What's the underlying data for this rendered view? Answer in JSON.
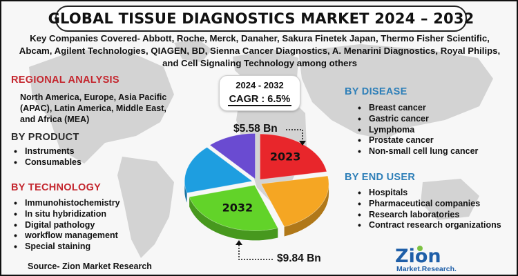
{
  "title": "GLOBAL TISSUE DIAGNOSTICS MARKET 2024 – 2032",
  "companies_text": "Key Companies Covered- Abbott, Roche, Merck, Danaher, Sakura Finetek Japan, Thermo Fisher Scientific, Abcam, Agilent Technologies, QIAGEN, BD, Sienna Cancer Diagnostics, A. Menarini Diagnostics, Royal Philips, and Cell Signaling Technology among others",
  "regional": {
    "heading": "REGIONAL ANALYSIS",
    "text": "North America, Europe, Asia Pacific (APAC), Latin America, Middle East, and Africa (MEA)"
  },
  "product": {
    "heading": "BY  PRODUCT",
    "items": [
      "Instruments",
      "Consumables"
    ]
  },
  "technology": {
    "heading": "BY TECHNOLOGY",
    "items": [
      "Immunohistochemistry",
      "In situ hybridization",
      "Digital pathology",
      "workflow management",
      "Special staining"
    ]
  },
  "disease": {
    "heading": "BY DISEASE",
    "items": [
      "Breast cancer",
      "Gastric cancer",
      "Lymphoma",
      "Prostate cancer",
      "Non-small cell lung cancer"
    ]
  },
  "end_user": {
    "heading": "BY END USER",
    "items": [
      "Hospitals",
      "Pharmaceutical companies",
      "Research laboratories",
      "Contract research organizations"
    ]
  },
  "period": "2024 - 2032",
  "cagr": "CAGR : 6.5%",
  "source": "Source- Zion Market Research",
  "logo": {
    "name": "Zion",
    "tagline": "Market.Research."
  },
  "colors": {
    "title_heading": "#c4262e",
    "right_heading": "#2e7fb8",
    "slice_2023": "#e8262b",
    "slice_orange": "#f5a623",
    "slice_green": "#62d329",
    "slice_blue": "#1e9ee0",
    "slice_purple": "#6a4bd1",
    "logo_blue": "#1f5fa8",
    "logo_green": "#7cc242"
  },
  "chart_data": {
    "type": "pie",
    "style": "3d exploded",
    "title": "",
    "slices": [
      {
        "label": "2023",
        "value": 5.58,
        "unit": "$ Bn",
        "display": "$5.58 Bn",
        "color": "#e8262b"
      },
      {
        "label": "2032",
        "value": 9.84,
        "unit": "$ Bn",
        "display": "$9.84  Bn",
        "color": "#62d329"
      }
    ],
    "unlabeled_slice_colors": [
      "#f5a623",
      "#1e9ee0",
      "#6a4bd1"
    ]
  }
}
